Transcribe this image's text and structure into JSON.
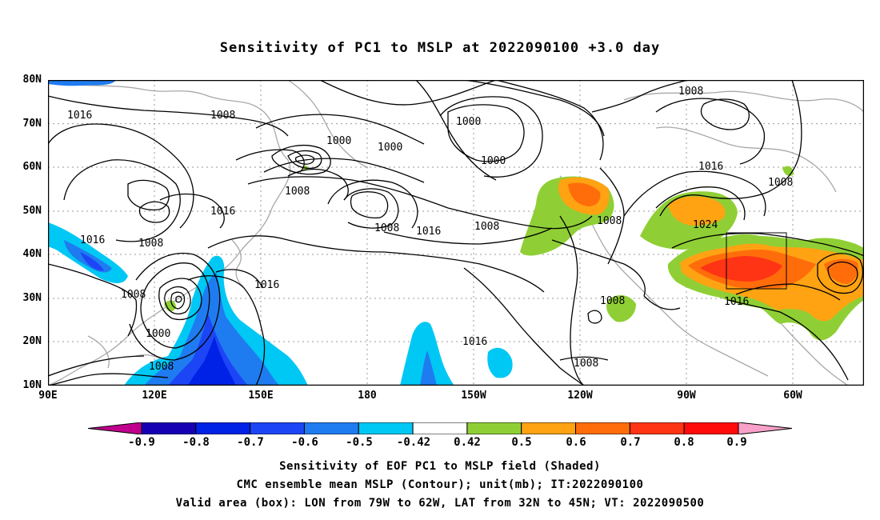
{
  "title": "Sensitivity of PC1 to MSLP at 2022090100 +3.0 day",
  "lat_labels": [
    "80N",
    "70N",
    "60N",
    "50N",
    "40N",
    "30N",
    "20N",
    "10N"
  ],
  "lon_labels": [
    "90E",
    "120E",
    "150E",
    "180",
    "150W",
    "120W",
    "90W",
    "60W"
  ],
  "contour_labels": [
    "1016",
    "1008",
    "1000",
    "1000",
    "1000",
    "1000",
    "1008",
    "1016",
    "1008",
    "1008",
    "1016",
    "1008",
    "1016",
    "1016",
    "1008",
    "1000",
    "1008",
    "1008",
    "1016",
    "1024",
    "1008",
    "1008",
    "1016",
    "1008",
    "1016",
    "1008"
  ],
  "colorbar": {
    "ticks": [
      "-0.9",
      "-0.8",
      "-0.7",
      "-0.6",
      "-0.5",
      "-0.42",
      "0.42",
      "0.5",
      "0.6",
      "0.7",
      "0.8",
      "0.9"
    ],
    "colors": [
      "#c0008c",
      "#1500b4",
      "#0022e6",
      "#1c46f5",
      "#1f7cf0",
      "#00c8f4",
      "#ffffff",
      "#8fcf35",
      "#ffa313",
      "#ff6d0a",
      "#ff3414",
      "#ff0b0b",
      "#f7a0c8"
    ]
  },
  "captions": [
    "Sensitivity of EOF PC1 to MSLP field (Shaded)",
    "CMC ensemble mean MSLP (Contour); unit(mb); IT:2022090100",
    "Valid area (box): LON from 79W to 62W, LAT from 32N to 45N; VT: 2022090500"
  ]
}
